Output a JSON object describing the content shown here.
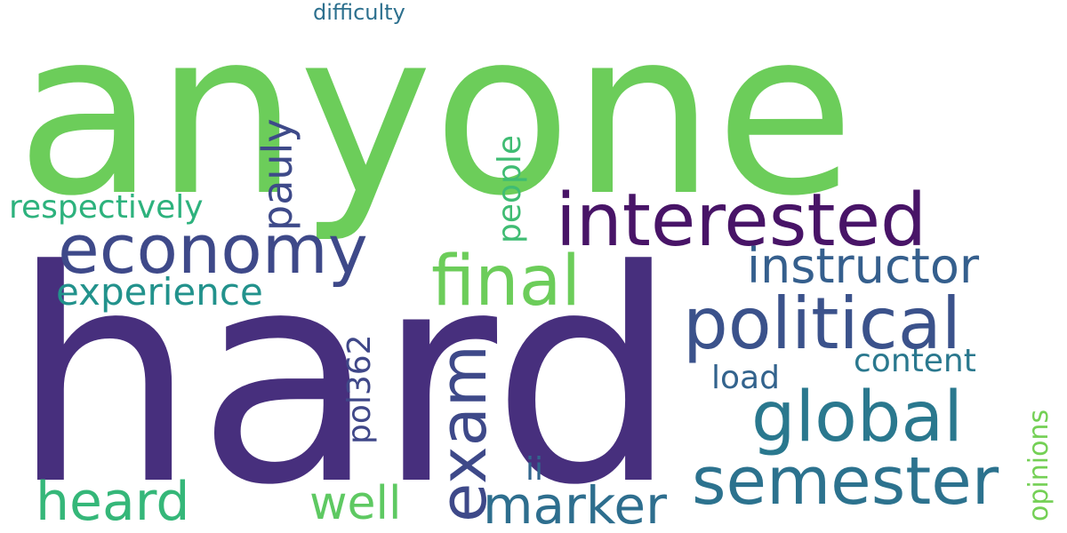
{
  "words": [
    {
      "text": "anyone",
      "color": "#6ccd5a",
      "rotated": false
    },
    {
      "text": "hard",
      "color": "#472f7d",
      "rotated": false
    },
    {
      "text": "interested",
      "color": "#481467",
      "rotated": false
    },
    {
      "text": "economy",
      "color": "#3e4989",
      "rotated": false
    },
    {
      "text": "political",
      "color": "#3b528b",
      "rotated": false
    },
    {
      "text": "global",
      "color": "#2a788e",
      "rotated": false
    },
    {
      "text": "semester",
      "color": "#2c728e",
      "rotated": false
    },
    {
      "text": "final",
      "color": "#6ccd5a",
      "rotated": false
    },
    {
      "text": "instructor",
      "color": "#355f8d",
      "rotated": false
    },
    {
      "text": "exam",
      "color": "#3e4989",
      "rotated": true
    },
    {
      "text": "heard",
      "color": "#35b779",
      "rotated": false
    },
    {
      "text": "marker",
      "color": "#2e6e8e",
      "rotated": false
    },
    {
      "text": "well",
      "color": "#5ec962",
      "rotated": false
    },
    {
      "text": "pauly",
      "color": "#3e4a89",
      "rotated": true
    },
    {
      "text": "experience",
      "color": "#22928c",
      "rotated": false
    },
    {
      "text": "respectively",
      "color": "#2db27d",
      "rotated": false
    },
    {
      "text": "people",
      "color": "#3fbc73",
      "rotated": true
    },
    {
      "text": "pol362",
      "color": "#3f4788",
      "rotated": true
    },
    {
      "text": "content",
      "color": "#2a788e",
      "rotated": false
    },
    {
      "text": "load",
      "color": "#33638d",
      "rotated": false
    },
    {
      "text": "opinions",
      "color": "#74d055",
      "rotated": true
    },
    {
      "text": "ii",
      "color": "#31668e",
      "rotated": false
    },
    {
      "text": "difficulty",
      "color": "#2d708e",
      "rotated": false
    }
  ]
}
